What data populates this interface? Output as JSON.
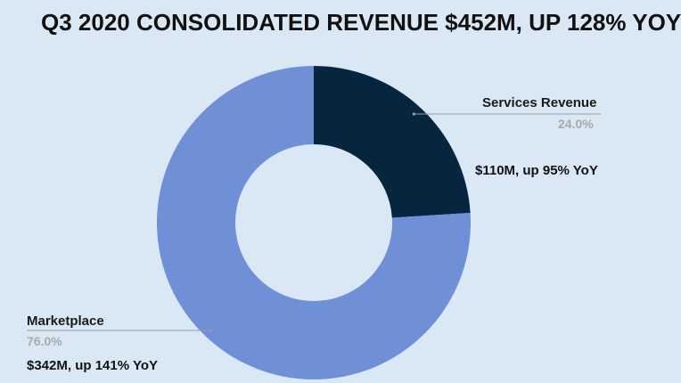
{
  "chart_data": {
    "type": "donut",
    "title": "Q3 2020 CONSOLIDATED REVENUE $452M, UP 128% YOY",
    "colors": {
      "background": "#dae8f6",
      "leader_line": "#9a9a9a"
    },
    "slices": [
      {
        "label": "Services Revenue",
        "value": 24.0,
        "percent_label": "24.0%",
        "color": "#06263f",
        "annotation": "$110M, up 95% YoY"
      },
      {
        "label": "Marketplace",
        "value": 76.0,
        "percent_label": "76.0%",
        "color": "#6f8fd6",
        "annotation": "$342M, up 141% YoY"
      }
    ]
  }
}
